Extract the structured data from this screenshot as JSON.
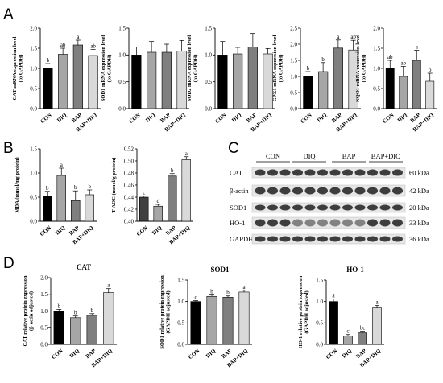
{
  "colors": {
    "CON": "#000000",
    "DIQ": "#a6a6a6",
    "BAP": "#7f7f7f",
    "BAP+DIQ": "#d9d9d9",
    "TAOC_CON": "#404040"
  },
  "panels": {
    "A": "A",
    "B": "B",
    "C": "C",
    "D": "D"
  },
  "chart_data": [
    {
      "id": "cat_mrna",
      "type": "bar",
      "panel": "A",
      "categories": [
        "CON",
        "DIQ",
        "BAP",
        "BAP+DIQ"
      ],
      "values": [
        1.0,
        1.35,
        1.58,
        1.32
      ],
      "errors": [
        0.12,
        0.15,
        0.12,
        0.15
      ],
      "labels": [
        "b",
        "ab",
        "a",
        "ab"
      ],
      "ylabel": "CAT mRNA expression level(to GAPDH)",
      "ylim": [
        0,
        2.0
      ],
      "ticks": [
        0.0,
        0.5,
        1.0,
        1.5,
        2.0
      ]
    },
    {
      "id": "sod1_mrna",
      "type": "bar",
      "panel": "A",
      "categories": [
        "CON",
        "DIQ",
        "BAP",
        "BAP+DIQ"
      ],
      "values": [
        1.0,
        1.05,
        1.05,
        1.07
      ],
      "errors": [
        0.15,
        0.2,
        0.15,
        0.2
      ],
      "labels": [
        "",
        "",
        "",
        ""
      ],
      "ylabel": "SOD1 mRNA expression level(to GAPDH)",
      "ylim": [
        0,
        1.5
      ],
      "ticks": [
        0.0,
        0.5,
        1.0,
        1.5
      ]
    },
    {
      "id": "sod2_mrna",
      "type": "bar",
      "panel": "A",
      "categories": [
        "CON",
        "DIQ",
        "BAP",
        "BAP+DIQ"
      ],
      "values": [
        1.0,
        1.02,
        1.15,
        1.02
      ],
      "errors": [
        0.25,
        0.12,
        0.25,
        0.1
      ],
      "labels": [
        "",
        "",
        "",
        ""
      ],
      "ylabel": "SOD2 mRNA expression level(to GAPDH)",
      "ylim": [
        0,
        1.5
      ],
      "ticks": [
        0.0,
        0.5,
        1.0,
        1.5
      ]
    },
    {
      "id": "gpx1_mrna",
      "type": "bar",
      "panel": "A",
      "categories": [
        "CON",
        "DIQ",
        "BAP",
        "BAP+DIQ"
      ],
      "values": [
        1.0,
        1.15,
        1.88,
        1.82
      ],
      "errors": [
        0.15,
        0.28,
        0.25,
        0.3
      ],
      "labels": [
        "b",
        "b",
        "a",
        "ab"
      ],
      "ylabel": "GPX1 mRNA expression level(to GAPDH)",
      "ylim": [
        0,
        2.5
      ],
      "ticks": [
        0.0,
        0.5,
        1.0,
        1.5,
        2.0,
        2.5
      ]
    },
    {
      "id": "nqo1_mrna",
      "type": "bar",
      "panel": "A",
      "categories": [
        "CON",
        "DIQ",
        "BAP",
        "BAP+DIQ"
      ],
      "values": [
        1.0,
        0.8,
        1.2,
        0.68
      ],
      "errors": [
        0.2,
        0.25,
        0.25,
        0.2
      ],
      "labels": [
        "ab",
        "ab",
        "a",
        "b"
      ],
      "ylabel": "NQO1 mRNA expression level(to GAPDH)",
      "ylim": [
        0,
        2.0
      ],
      "ticks": [
        0.0,
        0.5,
        1.0,
        1.5,
        2.0
      ]
    },
    {
      "id": "mda",
      "type": "bar",
      "panel": "B",
      "categories": [
        "CON",
        "DIQ",
        "BAP",
        "BAP+DIQ"
      ],
      "values": [
        0.52,
        0.95,
        0.43,
        0.55
      ],
      "errors": [
        0.1,
        0.15,
        0.2,
        0.1
      ],
      "labels": [
        "b",
        "a",
        "b",
        "b"
      ],
      "ylabel": "MDA (mmol/mg protein)",
      "ylim": [
        0,
        1.5
      ],
      "ticks": [
        0.0,
        0.5,
        1.0,
        1.5
      ]
    },
    {
      "id": "taoc",
      "type": "bar",
      "panel": "B",
      "categories": [
        "CON",
        "DIQ",
        "BAP",
        "BAP+DIQ"
      ],
      "values": [
        0.44,
        0.425,
        0.475,
        0.502
      ],
      "errors": [
        0.002,
        0.003,
        0.004,
        0.005
      ],
      "labels": [
        "c",
        "d",
        "b",
        "a"
      ],
      "ylabel": "T-AOC (mmol/g protein)",
      "ylim": [
        0.4,
        0.52
      ],
      "ticks": [
        0.4,
        0.42,
        0.44,
        0.46,
        0.48,
        0.5,
        0.52
      ]
    },
    {
      "id": "cat_protein",
      "type": "bar",
      "panel": "D",
      "title": "CAT",
      "categories": [
        "CON",
        "DIQ",
        "BAP",
        "BAP+DIQ"
      ],
      "values": [
        1.0,
        0.8,
        0.87,
        1.55
      ],
      "errors": [
        0.05,
        0.05,
        0.05,
        0.12
      ],
      "labels": [
        "b",
        "b",
        "b",
        "a"
      ],
      "ylabel": "CAT relative protein expression (β-actin adjusted)",
      "ylim": [
        0,
        2.0
      ],
      "ticks": [
        0.0,
        0.5,
        1.0,
        1.5,
        2.0
      ]
    },
    {
      "id": "sod1_protein",
      "type": "bar",
      "panel": "D",
      "title": "SOD1",
      "categories": [
        "CON",
        "DIQ",
        "BAP",
        "BAP+DIQ"
      ],
      "values": [
        1.0,
        1.12,
        1.1,
        1.22
      ],
      "errors": [
        0.02,
        0.03,
        0.03,
        0.04
      ],
      "labels": [
        "c",
        "b",
        "b",
        "a"
      ],
      "ylabel": "SOD1 relative protein expression (GAPDH adjusted)",
      "ylim": [
        0,
        1.5
      ],
      "ticks": [
        0.0,
        0.5,
        1.0,
        1.5
      ]
    },
    {
      "id": "ho1_protein",
      "type": "bar",
      "panel": "D",
      "title": "HO-1",
      "categories": [
        "CON",
        "DIQ",
        "BAP",
        "BAP+DIQ"
      ],
      "values": [
        1.0,
        0.2,
        0.27,
        0.85
      ],
      "errors": [
        0.06,
        0.03,
        0.04,
        0.06
      ],
      "labels": [
        "a",
        "c",
        "bc",
        "a"
      ],
      "ylabel": "HO-1 relative protein expression (GAPDH adjusted)",
      "ylim": [
        0,
        1.5
      ],
      "ticks": [
        0.0,
        0.5,
        1.0,
        1.5
      ]
    }
  ],
  "western_blot": {
    "groups": [
      "CON",
      "DIQ",
      "BAP",
      "BAP+DIQ"
    ],
    "rows": [
      {
        "protein": "CAT",
        "size": "60 kDa"
      },
      {
        "protein": "β-actin",
        "size": "42 kDa"
      },
      {
        "protein": "SOD1",
        "size": "20 kDa"
      },
      {
        "protein": "HO-1",
        "size": "33 kDa"
      },
      {
        "protein": "GAPDH",
        "size": "36 kDa"
      }
    ]
  }
}
